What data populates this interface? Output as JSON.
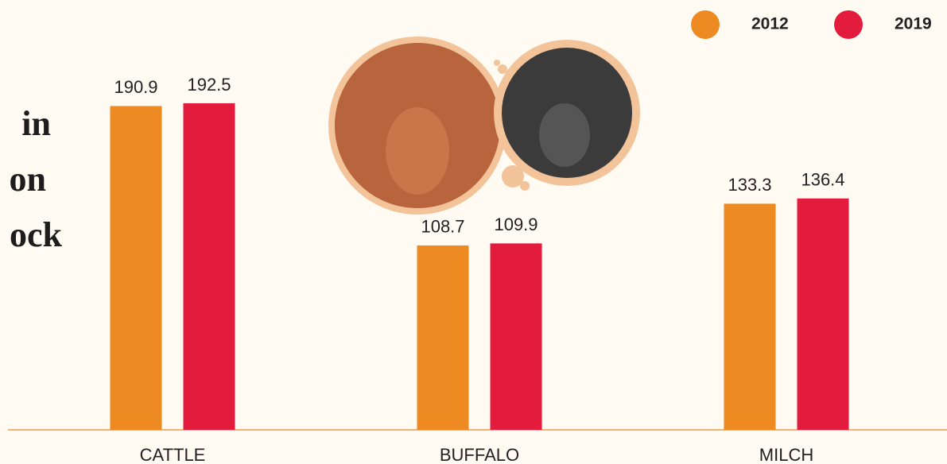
{
  "chart_data": {
    "type": "bar",
    "title_fragments": [
      "in",
      "on",
      "ock"
    ],
    "categories": [
      "CATTLE",
      "BUFFALO",
      "MILCH"
    ],
    "series": [
      {
        "name": "2012",
        "color": "#ee8a22",
        "values": [
          190.9,
          108.7,
          133.3
        ]
      },
      {
        "name": "2019",
        "color": "#e31c3d",
        "values": [
          192.5,
          109.9,
          136.4
        ]
      }
    ],
    "ylim": [
      0,
      200
    ],
    "legend": "top-right"
  }
}
